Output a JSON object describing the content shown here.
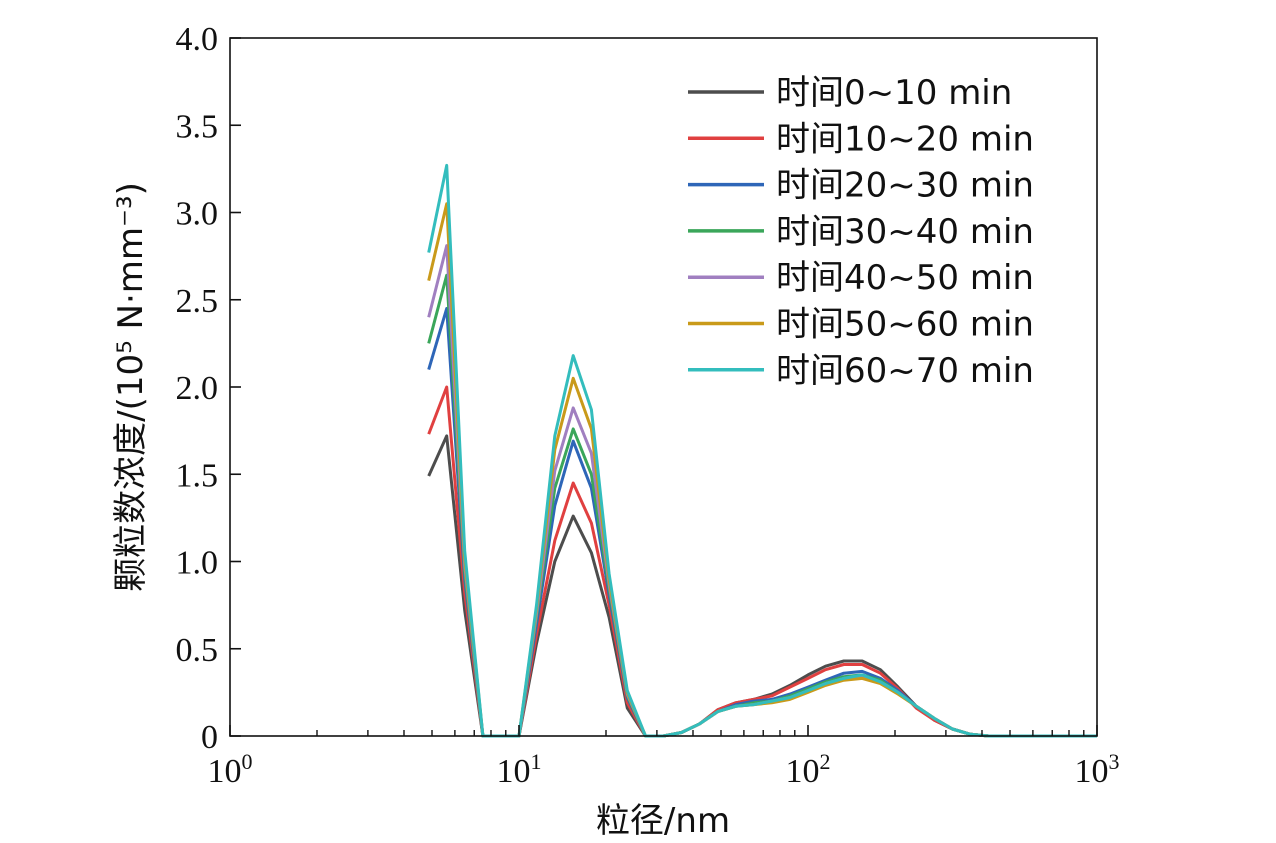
{
  "chart_data": {
    "type": "line",
    "title": "",
    "xlabel": "粒径/nm",
    "ylabel": "颗粒数浓度/(10⁵ N·mm⁻³)",
    "xscale": "log",
    "xlim": [
      1,
      1000
    ],
    "ylim": [
      0,
      4.0
    ],
    "xticks": [
      {
        "value": 1,
        "base": "10",
        "exp": "0"
      },
      {
        "value": 10,
        "base": "10",
        "exp": "1"
      },
      {
        "value": 100,
        "base": "10",
        "exp": "2"
      },
      {
        "value": 1000,
        "base": "10",
        "exp": "3"
      }
    ],
    "yticks": [
      "0",
      "0.5",
      "1.0",
      "1.5",
      "2.0",
      "2.5",
      "3.0",
      "3.5",
      "4.0"
    ],
    "legend_position": "top-right",
    "grid": false,
    "x": [
      4.87,
      5.62,
      6.49,
      7.5,
      8.66,
      10.0,
      11.5,
      13.3,
      15.4,
      17.8,
      20.5,
      23.7,
      27.4,
      31.6,
      36.5,
      42.2,
      48.7,
      56.2,
      64.9,
      75.0,
      86.6,
      100,
      115,
      133,
      154,
      178,
      205,
      237,
      274,
      316,
      365,
      422,
      487,
      562,
      649,
      750,
      866,
      1000
    ],
    "series": [
      {
        "name": "时间0~10 min",
        "color": "#4d4d4d",
        "values": [
          1.49,
          1.72,
          0.72,
          0.0,
          0.0,
          0.0,
          0.53,
          1.0,
          1.26,
          1.05,
          0.68,
          0.16,
          0.0,
          0.0,
          0.02,
          0.07,
          0.15,
          0.19,
          0.21,
          0.24,
          0.29,
          0.35,
          0.4,
          0.43,
          0.43,
          0.38,
          0.28,
          0.17,
          0.09,
          0.04,
          0.01,
          0.0,
          0.0,
          0.0,
          0.0,
          0.0,
          0.0,
          0.0
        ]
      },
      {
        "name": "时间10~20 min",
        "color": "#e04040",
        "values": [
          1.73,
          2.0,
          0.82,
          0.0,
          0.0,
          0.0,
          0.58,
          1.12,
          1.45,
          1.22,
          0.75,
          0.19,
          0.0,
          0.0,
          0.02,
          0.07,
          0.15,
          0.19,
          0.21,
          0.23,
          0.28,
          0.33,
          0.38,
          0.41,
          0.41,
          0.36,
          0.27,
          0.16,
          0.09,
          0.04,
          0.01,
          0.0,
          0.0,
          0.0,
          0.0,
          0.0,
          0.0,
          0.0
        ]
      },
      {
        "name": "时间20~30 min",
        "color": "#2e66b8",
        "values": [
          2.1,
          2.45,
          0.9,
          0.0,
          0.0,
          0.0,
          0.64,
          1.32,
          1.69,
          1.42,
          0.81,
          0.22,
          0.0,
          0.0,
          0.02,
          0.07,
          0.14,
          0.18,
          0.2,
          0.21,
          0.24,
          0.28,
          0.32,
          0.36,
          0.37,
          0.33,
          0.26,
          0.17,
          0.1,
          0.04,
          0.01,
          0.0,
          0.0,
          0.0,
          0.0,
          0.0,
          0.0,
          0.0
        ]
      },
      {
        "name": "时间30~40 min",
        "color": "#3aa65a",
        "values": [
          2.25,
          2.64,
          0.94,
          0.0,
          0.0,
          0.0,
          0.68,
          1.42,
          1.76,
          1.5,
          0.84,
          0.23,
          0.0,
          0.0,
          0.02,
          0.07,
          0.14,
          0.17,
          0.19,
          0.2,
          0.23,
          0.27,
          0.31,
          0.34,
          0.35,
          0.32,
          0.25,
          0.17,
          0.1,
          0.04,
          0.01,
          0.0,
          0.0,
          0.0,
          0.0,
          0.0,
          0.0,
          0.0
        ]
      },
      {
        "name": "时间40~50 min",
        "color": "#a07fc0",
        "values": [
          2.4,
          2.81,
          0.98,
          0.0,
          0.0,
          0.0,
          0.7,
          1.52,
          1.88,
          1.62,
          0.87,
          0.24,
          0.0,
          0.0,
          0.02,
          0.07,
          0.14,
          0.17,
          0.18,
          0.2,
          0.22,
          0.26,
          0.3,
          0.33,
          0.34,
          0.31,
          0.25,
          0.17,
          0.1,
          0.04,
          0.01,
          0.0,
          0.0,
          0.0,
          0.0,
          0.0,
          0.0,
          0.0
        ]
      },
      {
        "name": "时间50~60 min",
        "color": "#c99a1a",
        "values": [
          2.61,
          3.05,
          1.02,
          0.0,
          0.0,
          0.0,
          0.73,
          1.64,
          2.05,
          1.76,
          0.9,
          0.25,
          0.0,
          0.0,
          0.02,
          0.07,
          0.14,
          0.17,
          0.18,
          0.19,
          0.21,
          0.25,
          0.29,
          0.32,
          0.33,
          0.3,
          0.24,
          0.17,
          0.1,
          0.04,
          0.01,
          0.0,
          0.0,
          0.0,
          0.0,
          0.0,
          0.0,
          0.0
        ]
      },
      {
        "name": "时间60~70 min",
        "color": "#33bdbd",
        "values": [
          2.77,
          3.27,
          1.06,
          0.0,
          0.0,
          0.0,
          0.75,
          1.72,
          2.18,
          1.87,
          0.93,
          0.26,
          0.0,
          0.0,
          0.02,
          0.07,
          0.14,
          0.17,
          0.18,
          0.2,
          0.22,
          0.26,
          0.3,
          0.33,
          0.35,
          0.31,
          0.25,
          0.17,
          0.1,
          0.04,
          0.01,
          0.0,
          0.0,
          0.0,
          0.0,
          0.0,
          0.0,
          0.0
        ]
      }
    ]
  }
}
